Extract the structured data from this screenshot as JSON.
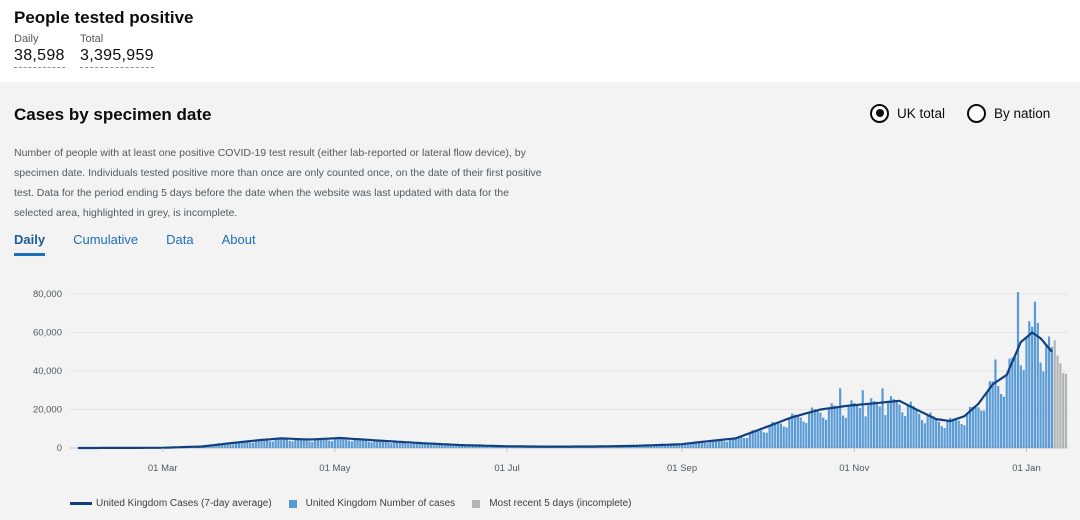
{
  "header": {
    "title": "People tested positive",
    "daily_label": "Daily",
    "daily_value": "38,598",
    "total_label": "Total",
    "total_value": "3,395,959"
  },
  "card": {
    "title": "Cases by specimen date",
    "radio_uk": "UK total",
    "radio_nation": "By nation",
    "description": "Number of people with at least one positive COVID-19 test result (either lab-reported or lateral flow device), by specimen date. Individuals tested positive more than once are only counted once, on the date of their first positive test. Data for the period ending 5 days before the date when the website was last updated with data for the selected area, highlighted in grey, is incomplete.",
    "tabs": [
      "Daily",
      "Cumulative",
      "Data",
      "About"
    ]
  },
  "colors": {
    "bar": "#5b9bd5",
    "avg_line": "#12407f",
    "incomplete": "#b1b4b6",
    "link": "#1d70b8"
  },
  "chart_data": {
    "type": "bar",
    "ylim": [
      0,
      80000
    ],
    "yticks": [
      0,
      20000,
      40000,
      60000,
      80000
    ],
    "ytick_labels": [
      "0",
      "20,000",
      "40,000",
      "60,000",
      "80,000"
    ],
    "xtick_labels": [
      "01 Mar",
      "01 May",
      "01 Jul",
      "01 Sep",
      "01 Nov",
      "01 Jan"
    ],
    "xtick_dates": [
      "2020-03-01",
      "2020-05-01",
      "2020-07-01",
      "2020-09-01",
      "2020-11-01",
      "2021-01-01"
    ],
    "x_start": "2020-01-31",
    "x_end": "2021-01-15",
    "incomplete_from": "2021-01-11",
    "series_anchors": [
      [
        "2020-01-31",
        0
      ],
      [
        "2020-03-01",
        100
      ],
      [
        "2020-03-15",
        800
      ],
      [
        "2020-03-25",
        2500
      ],
      [
        "2020-04-05",
        4200
      ],
      [
        "2020-04-12",
        5000
      ],
      [
        "2020-04-22",
        4400
      ],
      [
        "2020-05-03",
        5200
      ],
      [
        "2020-05-15",
        4000
      ],
      [
        "2020-06-01",
        2500
      ],
      [
        "2020-06-15",
        1500
      ],
      [
        "2020-07-01",
        900
      ],
      [
        "2020-07-15",
        700
      ],
      [
        "2020-08-01",
        800
      ],
      [
        "2020-08-15",
        1100
      ],
      [
        "2020-09-01",
        2000
      ],
      [
        "2020-09-10",
        3500
      ],
      [
        "2020-09-20",
        5000
      ],
      [
        "2020-10-01",
        11000
      ],
      [
        "2020-10-10",
        16000
      ],
      [
        "2020-10-20",
        20000
      ],
      [
        "2020-10-30",
        22000
      ],
      [
        "2020-11-10",
        23500
      ],
      [
        "2020-11-17",
        24500
      ],
      [
        "2020-11-23",
        20000
      ],
      [
        "2020-11-30",
        15000
      ],
      [
        "2020-12-05",
        14000
      ],
      [
        "2020-12-10",
        16500
      ],
      [
        "2020-12-15",
        23000
      ],
      [
        "2020-12-20",
        33000
      ],
      [
        "2020-12-25",
        38000
      ],
      [
        "2020-12-30",
        55000
      ],
      [
        "2021-01-03",
        60000
      ],
      [
        "2021-01-06",
        57000
      ],
      [
        "2021-01-10",
        50000
      ]
    ],
    "bar_spikes": [
      [
        "2020-10-27",
        31000
      ],
      [
        "2020-11-04",
        30000
      ],
      [
        "2020-11-11",
        31000
      ],
      [
        "2020-12-21",
        46000
      ],
      [
        "2020-12-29",
        81000
      ],
      [
        "2021-01-04",
        76000
      ],
      [
        "2021-01-05",
        65000
      ]
    ],
    "incomplete_values": [
      56000,
      48000,
      44000,
      39000,
      38598
    ],
    "legend": [
      "United Kingdom Cases (7-day average)",
      "United Kingdom Number of cases",
      "Most recent 5 days (incomplete)"
    ]
  }
}
